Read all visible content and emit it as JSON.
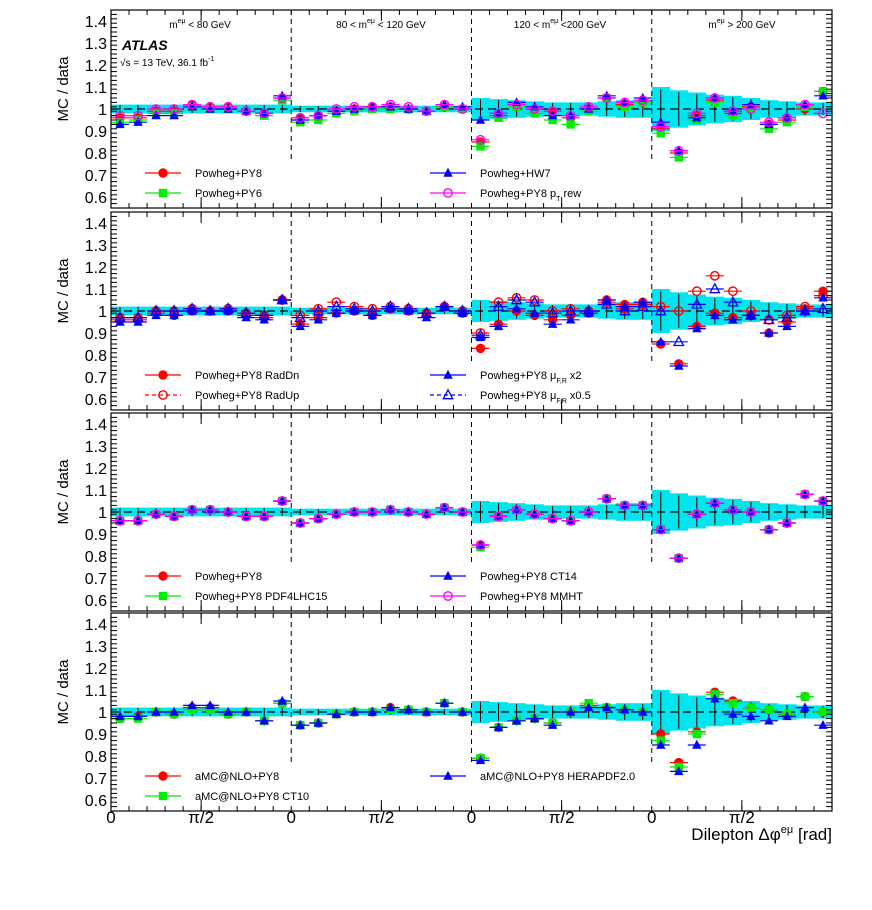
{
  "figure": {
    "experiment": "ATLAS",
    "energy_label": "√s = 13 TeV, 36.1 fb",
    "energy_sup": "-1",
    "xlabel_main": "Dilepton Δφ",
    "xlabel_sup": "eμ",
    "xlabel_unit": " [rad]",
    "regions": [
      {
        "pre": "m",
        "sup": "eμ",
        "post": " < 80 GeV"
      },
      {
        "pre": "80 < m",
        "sup": "eμ",
        "post": " < 120 GeV"
      },
      {
        "pre": "120 < m",
        "sup": "eμ",
        "post": " <200 GeV"
      },
      {
        "pre": "m",
        "sup": "eμ",
        "post": " > 200 GeV"
      }
    ],
    "x_tick_labels": [
      "0",
      "π/2",
      "0",
      "π/2",
      "0",
      "π/2",
      "0",
      "π/2"
    ]
  },
  "chart_data": [
    {
      "type": "scatter",
      "ylabel": "MC / data",
      "ylim": [
        0.55,
        1.45
      ],
      "y_ticks": [
        "0.6",
        "0.7",
        "0.8",
        "0.9",
        "1",
        "1.1",
        "1.2",
        "1.3",
        "1.4"
      ],
      "band_halfwidth": [
        0.02,
        0.02,
        0.02,
        0.02,
        0.02,
        0.02,
        0.02,
        0.02,
        0.02,
        0.02,
        0.015,
        0.015,
        0.015,
        0.015,
        0.015,
        0.015,
        0.015,
        0.015,
        0.015,
        0.015,
        0.05,
        0.045,
        0.04,
        0.035,
        0.03,
        0.03,
        0.03,
        0.035,
        0.04,
        0.04,
        0.1,
        0.085,
        0.075,
        0.065,
        0.06,
        0.05,
        0.04,
        0.035,
        0.03,
        0.03
      ],
      "legend": [
        {
          "label": "Powheg+PY8",
          "color": "#ff0000",
          "marker": "circle"
        },
        {
          "label": "Powheg+PY6",
          "color": "#00ee00",
          "marker": "square"
        },
        {
          "label": "Powheg+HW7",
          "color": "#0000ff",
          "marker": "triangle"
        },
        {
          "label": "Powheg+PY8 p",
          "sub": "T",
          "suffix": " rew",
          "color": "#ff00ff",
          "marker": "open-circle"
        }
      ],
      "series": [
        {
          "name": "Powheg+PY8",
          "values": [
            0.96,
            0.96,
            0.99,
            0.99,
            1.02,
            1.01,
            1.01,
            0.99,
            0.98,
            1.05,
            0.96,
            0.97,
            0.99,
            1.0,
            1.01,
            1.01,
            1.0,
            0.99,
            1.01,
            1.0,
            0.85,
            0.97,
            1.02,
            1.0,
            0.99,
            0.96,
            1.0,
            1.05,
            1.02,
            1.03,
            0.91,
            0.8,
            0.97,
            1.04,
            0.98,
            1.01,
            0.93,
            0.95,
            1.0,
            1.08
          ]
        },
        {
          "name": "Powheg+PY6",
          "values": [
            0.94,
            0.95,
            0.98,
            0.98,
            1.01,
            1.0,
            1.0,
            0.99,
            0.97,
            1.04,
            0.94,
            0.95,
            0.98,
            0.99,
            1.0,
            1.0,
            1.0,
            0.99,
            1.01,
            1.0,
            0.83,
            0.96,
            1.01,
            0.98,
            0.95,
            0.93,
            0.99,
            1.05,
            1.01,
            1.03,
            0.89,
            0.78,
            0.95,
            1.03,
            0.97,
            1.0,
            0.91,
            0.94,
            1.01,
            1.08
          ]
        },
        {
          "name": "Powheg+HW7",
          "values": [
            0.93,
            0.94,
            0.97,
            0.97,
            1.01,
            1.0,
            1.0,
            0.99,
            0.98,
            1.06,
            0.95,
            0.97,
            0.99,
            1.0,
            1.01,
            1.01,
            1.0,
            0.99,
            1.02,
            1.01,
            0.95,
            0.98,
            1.03,
            1.01,
            0.97,
            0.97,
            1.0,
            1.06,
            1.03,
            1.05,
            0.94,
            0.81,
            0.96,
            1.05,
            0.99,
            1.02,
            0.93,
            0.96,
            1.02,
            1.06
          ]
        },
        {
          "name": "Powheg+PY8 pT rew",
          "values": [
            0.97,
            0.97,
            1.0,
            1.0,
            1.02,
            1.01,
            1.01,
            0.99,
            0.98,
            1.05,
            0.96,
            0.97,
            1.0,
            1.01,
            1.01,
            1.02,
            1.01,
            0.99,
            1.02,
            1.0,
            0.86,
            0.98,
            1.02,
            1.0,
            0.99,
            0.97,
            1.01,
            1.05,
            1.03,
            1.04,
            0.92,
            0.81,
            0.98,
            1.05,
            0.99,
            1.0,
            0.94,
            0.96,
            1.02,
            0.98
          ]
        }
      ]
    },
    {
      "type": "scatter",
      "ylabel": "MC / data",
      "ylim": [
        0.55,
        1.45
      ],
      "y_ticks": [
        "0.6",
        "0.7",
        "0.8",
        "0.9",
        "1",
        "1.1",
        "1.2",
        "1.3",
        "1.4"
      ],
      "band_halfwidth": [
        0.02,
        0.02,
        0.02,
        0.02,
        0.02,
        0.02,
        0.02,
        0.02,
        0.02,
        0.02,
        0.015,
        0.015,
        0.015,
        0.015,
        0.015,
        0.015,
        0.015,
        0.015,
        0.015,
        0.015,
        0.05,
        0.045,
        0.04,
        0.035,
        0.03,
        0.03,
        0.03,
        0.035,
        0.04,
        0.04,
        0.1,
        0.085,
        0.075,
        0.065,
        0.06,
        0.05,
        0.04,
        0.035,
        0.03,
        0.03
      ],
      "legend": [
        {
          "label": "Powheg+PY8 RadDn",
          "color": "#ff0000",
          "marker": "circle"
        },
        {
          "label": "Powheg+PY8 RadUp",
          "color": "#ff0000",
          "marker": "open-circle",
          "dashed": true
        },
        {
          "label": "Powheg+PY8 μ",
          "sub": "F,R",
          "suffix": " x2",
          "color": "#0000ff",
          "marker": "triangle"
        },
        {
          "label": "Powheg+PY8 μ",
          "sub": "F,R",
          "suffix": " x0.5",
          "color": "#0000ff",
          "marker": "open-triangle",
          "dashed": true
        }
      ],
      "series": [
        {
          "name": "Powheg+PY8 RadDn",
          "values": [
            0.96,
            0.96,
            0.99,
            0.98,
            1.0,
            1.0,
            1.0,
            0.98,
            0.97,
            1.05,
            0.94,
            0.97,
            0.99,
            1.0,
            0.98,
            1.01,
            1.0,
            0.99,
            1.02,
            0.99,
            0.83,
            0.94,
            1.0,
            0.98,
            0.96,
            0.98,
            0.99,
            1.05,
            1.03,
            1.04,
            0.85,
            0.76,
            0.93,
            0.99,
            0.97,
            0.98,
            0.9,
            0.95,
            1.01,
            1.09
          ]
        },
        {
          "name": "Powheg+PY8 RadUp",
          "values": [
            0.97,
            0.97,
            1.0,
            1.0,
            1.01,
            1.0,
            1.01,
            0.99,
            0.98,
            1.05,
            0.98,
            1.01,
            1.04,
            1.02,
            1.01,
            1.02,
            1.01,
            0.99,
            1.02,
            1.0,
            0.9,
            1.04,
            1.06,
            1.05,
            1.0,
            1.01,
            1.0,
            1.04,
            1.01,
            1.03,
            1.02,
            1.0,
            1.09,
            1.16,
            1.09,
            1.0,
            0.96,
            0.98,
            1.02,
            1.07
          ]
        },
        {
          "name": "Powheg+PY8 μF,R x2",
          "values": [
            0.95,
            0.95,
            0.98,
            0.98,
            1.0,
            1.0,
            1.0,
            0.97,
            0.96,
            1.05,
            0.93,
            0.96,
            0.99,
            1.0,
            0.98,
            1.01,
            1.0,
            0.97,
            1.02,
            0.99,
            0.88,
            0.93,
            1.01,
            0.99,
            0.94,
            0.96,
            0.99,
            1.05,
            1.02,
            1.04,
            0.86,
            0.75,
            0.92,
            0.98,
            0.96,
            0.98,
            0.9,
            0.93,
            1.0,
            1.06
          ]
        },
        {
          "name": "Powheg+PY8 μF,R x0.5",
          "values": [
            0.97,
            0.97,
            1.0,
            1.0,
            1.01,
            1.0,
            1.01,
            0.99,
            0.98,
            1.05,
            0.97,
            1.0,
            1.02,
            1.01,
            1.0,
            1.02,
            1.01,
            0.99,
            1.02,
            1.0,
            0.89,
            1.02,
            1.05,
            1.04,
            0.99,
            1.0,
            1.0,
            1.03,
            1.0,
            1.02,
            1.0,
            0.86,
            1.03,
            1.1,
            1.04,
            0.98,
            0.96,
            0.97,
            1.0,
            1.01
          ]
        }
      ]
    },
    {
      "type": "scatter",
      "ylabel": "MC / data",
      "ylim": [
        0.55,
        1.45
      ],
      "y_ticks": [
        "0.6",
        "0.7",
        "0.8",
        "0.9",
        "1",
        "1.1",
        "1.2",
        "1.3",
        "1.4"
      ],
      "band_halfwidth": [
        0.02,
        0.02,
        0.02,
        0.02,
        0.02,
        0.02,
        0.02,
        0.02,
        0.02,
        0.02,
        0.015,
        0.015,
        0.015,
        0.015,
        0.015,
        0.015,
        0.015,
        0.015,
        0.015,
        0.015,
        0.05,
        0.045,
        0.04,
        0.035,
        0.03,
        0.03,
        0.03,
        0.035,
        0.04,
        0.04,
        0.1,
        0.085,
        0.075,
        0.065,
        0.06,
        0.05,
        0.04,
        0.035,
        0.03,
        0.03
      ],
      "legend": [
        {
          "label": "Powheg+PY8",
          "color": "#ff0000",
          "marker": "circle"
        },
        {
          "label": "Powheg+PY8 PDF4LHC15",
          "color": "#00ee00",
          "marker": "square"
        },
        {
          "label": "Powheg+PY8 CT14",
          "color": "#0000ff",
          "marker": "triangle"
        },
        {
          "label": "Powheg+PY8 MMHT",
          "color": "#ff00ff",
          "marker": "open-circle"
        }
      ],
      "series": [
        {
          "name": "Powheg+PY8",
          "values": [
            0.96,
            0.96,
            0.99,
            0.98,
            1.01,
            1.01,
            1.0,
            0.98,
            0.98,
            1.05,
            0.95,
            0.97,
            0.99,
            1.0,
            1.0,
            1.01,
            1.0,
            0.99,
            1.02,
            1.0,
            0.85,
            0.98,
            1.01,
            0.99,
            0.97,
            0.96,
            1.0,
            1.06,
            1.03,
            1.03,
            0.92,
            0.79,
            0.99,
            1.04,
            1.01,
            1.0,
            0.92,
            0.95,
            1.08,
            1.05
          ]
        },
        {
          "name": "Powheg+PY8 PDF4LHC15",
          "values": [
            0.96,
            0.96,
            0.99,
            0.98,
            1.01,
            1.01,
            1.0,
            0.98,
            0.98,
            1.05,
            0.95,
            0.97,
            0.99,
            1.0,
            1.0,
            1.01,
            1.0,
            0.99,
            1.02,
            1.0,
            0.84,
            0.98,
            1.01,
            0.99,
            0.97,
            0.96,
            1.0,
            1.06,
            1.03,
            1.03,
            0.92,
            0.79,
            0.99,
            1.04,
            1.01,
            1.0,
            0.92,
            0.95,
            1.08,
            1.05
          ]
        },
        {
          "name": "Powheg+PY8 CT14",
          "values": [
            0.96,
            0.96,
            0.99,
            0.98,
            1.01,
            1.01,
            1.0,
            0.98,
            0.98,
            1.05,
            0.95,
            0.97,
            0.99,
            1.0,
            1.0,
            1.01,
            1.0,
            0.99,
            1.02,
            1.0,
            0.85,
            0.98,
            1.01,
            0.99,
            0.97,
            0.96,
            1.0,
            1.06,
            1.03,
            1.03,
            0.92,
            0.79,
            0.99,
            1.04,
            1.01,
            1.0,
            0.92,
            0.95,
            1.08,
            1.05
          ]
        },
        {
          "name": "Powheg+PY8 MMHT",
          "values": [
            0.96,
            0.96,
            0.99,
            0.98,
            1.01,
            1.01,
            1.0,
            0.98,
            0.98,
            1.05,
            0.95,
            0.97,
            0.99,
            1.0,
            1.0,
            1.01,
            1.0,
            0.99,
            1.02,
            1.0,
            0.85,
            0.98,
            1.01,
            0.99,
            0.97,
            0.96,
            1.0,
            1.06,
            1.03,
            1.03,
            0.92,
            0.79,
            0.99,
            1.04,
            1.01,
            1.0,
            0.92,
            0.95,
            1.08,
            1.05
          ]
        }
      ]
    },
    {
      "type": "scatter",
      "ylabel": "MC / data",
      "ylim": [
        0.55,
        1.45
      ],
      "y_ticks": [
        "0.6",
        "0.7",
        "0.8",
        "0.9",
        "1",
        "1.1",
        "1.2",
        "1.3",
        "1.4"
      ],
      "band_halfwidth": [
        0.02,
        0.02,
        0.02,
        0.02,
        0.02,
        0.02,
        0.02,
        0.02,
        0.02,
        0.02,
        0.015,
        0.015,
        0.015,
        0.015,
        0.015,
        0.015,
        0.015,
        0.015,
        0.015,
        0.015,
        0.05,
        0.045,
        0.04,
        0.035,
        0.03,
        0.03,
        0.03,
        0.035,
        0.04,
        0.04,
        0.1,
        0.085,
        0.075,
        0.065,
        0.06,
        0.05,
        0.04,
        0.035,
        0.03,
        0.03
      ],
      "legend": [
        {
          "label": "aMC@NLO+PY8",
          "color": "#ff0000",
          "marker": "circle"
        },
        {
          "label": "aMC@NLO+PY8 CT10",
          "color": "#00ee00",
          "marker": "square"
        },
        {
          "label": "aMC@NLO+PY8 HERAPDF2.0",
          "color": "#0000ff",
          "marker": "triangle"
        }
      ],
      "series": [
        {
          "name": "aMC@NLO+PY8",
          "values": [
            0.97,
            0.98,
            1.0,
            0.99,
            1.02,
            1.02,
            0.99,
            1.0,
            0.96,
            1.04,
            0.94,
            0.95,
            0.99,
            1.0,
            1.0,
            1.02,
            1.01,
            1.0,
            1.04,
            1.0,
            0.79,
            0.93,
            0.96,
            0.97,
            0.95,
            1.0,
            1.03,
            1.02,
            1.01,
            1.0,
            0.9,
            0.77,
            0.91,
            1.09,
            1.05,
            1.02,
            1.01,
            0.99,
            1.07,
            1.0
          ]
        },
        {
          "name": "aMC@NLO+PY8 CT10",
          "values": [
            0.97,
            0.97,
            1.0,
            0.99,
            1.01,
            1.01,
            0.99,
            1.0,
            0.96,
            1.04,
            0.94,
            0.95,
            0.99,
            1.0,
            1.0,
            1.01,
            1.01,
            1.0,
            1.04,
            1.0,
            0.79,
            0.93,
            0.96,
            0.97,
            0.95,
            1.0,
            1.04,
            1.02,
            1.01,
            1.0,
            0.87,
            0.75,
            0.9,
            1.08,
            1.04,
            1.02,
            1.01,
            0.99,
            1.07,
            1.0
          ]
        },
        {
          "name": "aMC@NLO+PY8 HERAPDF2.0",
          "values": [
            0.98,
            0.98,
            1.0,
            1.0,
            1.03,
            1.03,
            1.0,
            1.0,
            0.96,
            1.05,
            0.94,
            0.95,
            0.99,
            1.0,
            1.0,
            1.02,
            1.01,
            1.0,
            1.04,
            1.0,
            0.78,
            0.93,
            0.96,
            0.97,
            0.94,
            1.0,
            1.02,
            1.02,
            1.01,
            1.0,
            0.85,
            0.73,
            0.85,
            1.06,
            0.99,
            0.98,
            0.96,
            0.98,
            1.02,
            0.94
          ]
        }
      ]
    }
  ]
}
